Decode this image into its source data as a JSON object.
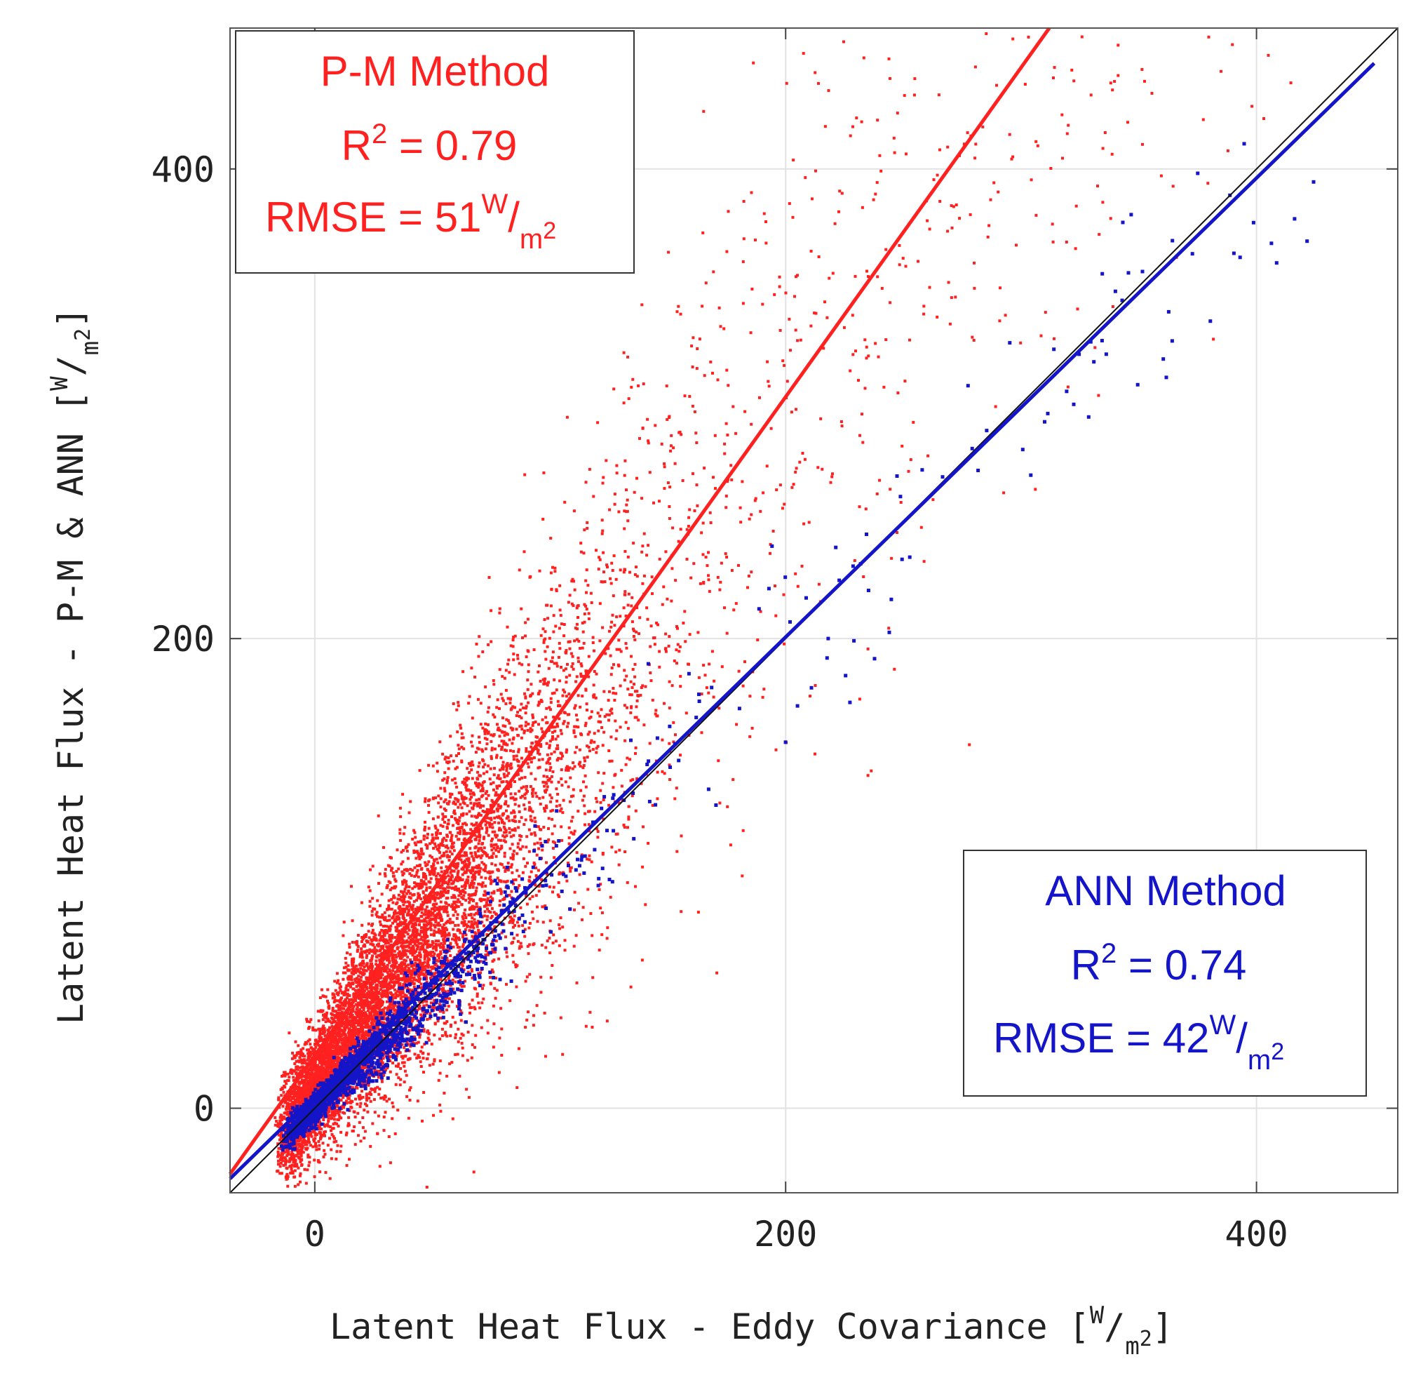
{
  "chart_data": {
    "type": "scatter",
    "title": "",
    "xlabel": "Latent Heat Flux - Eddy Covariance",
    "ylabel": "Latent Heat Flux - P-M & ANN",
    "unit": {
      "num": "W",
      "den": "m",
      "exp": "2"
    },
    "xlim": [
      -36,
      460
    ],
    "ylim": [
      -36,
      460
    ],
    "xticks": [
      0,
      200,
      400
    ],
    "yticks": [
      0,
      200,
      400
    ],
    "grid": true,
    "reference_line": {
      "name": "1:1 line",
      "x": [
        -36,
        460
      ],
      "y": [
        -36,
        460
      ],
      "color": "#111111"
    },
    "series": [
      {
        "name": "P-M Method",
        "color": "#ff2020",
        "fit_line": {
          "x": [
            -36,
            312
          ],
          "y": [
            -28,
            460
          ]
        },
        "r2_label": "R",
        "r2_exp": "2",
        "r2_value": "= 0.79",
        "rmse_label": "RMSE = 51",
        "cloud": {
          "count": 9000,
          "x_center": 40,
          "x_spread": 62,
          "x_min": -12,
          "x_max": 425,
          "slope": 1.4,
          "intercept": 8,
          "noise": 48,
          "point_size": 4
        }
      },
      {
        "name": "ANN Method",
        "color": "#1414c8",
        "fit_line": {
          "x": [
            -36,
            450
          ],
          "y": [
            -30,
            445
          ]
        },
        "r2_label": "R",
        "r2_exp": "2",
        "r2_value": "= 0.74",
        "rmse_label": "RMSE = 42",
        "cloud": {
          "count": 1700,
          "x_center": 12,
          "x_spread": 38,
          "x_min": -10,
          "x_max": 425,
          "slope": 0.98,
          "intercept": 0,
          "noise": 14,
          "point_size": 5
        }
      }
    ],
    "legend": [
      {
        "series": "P-M Method",
        "placement": "top-left"
      },
      {
        "series": "ANN Method",
        "placement": "bottom-right"
      }
    ]
  }
}
